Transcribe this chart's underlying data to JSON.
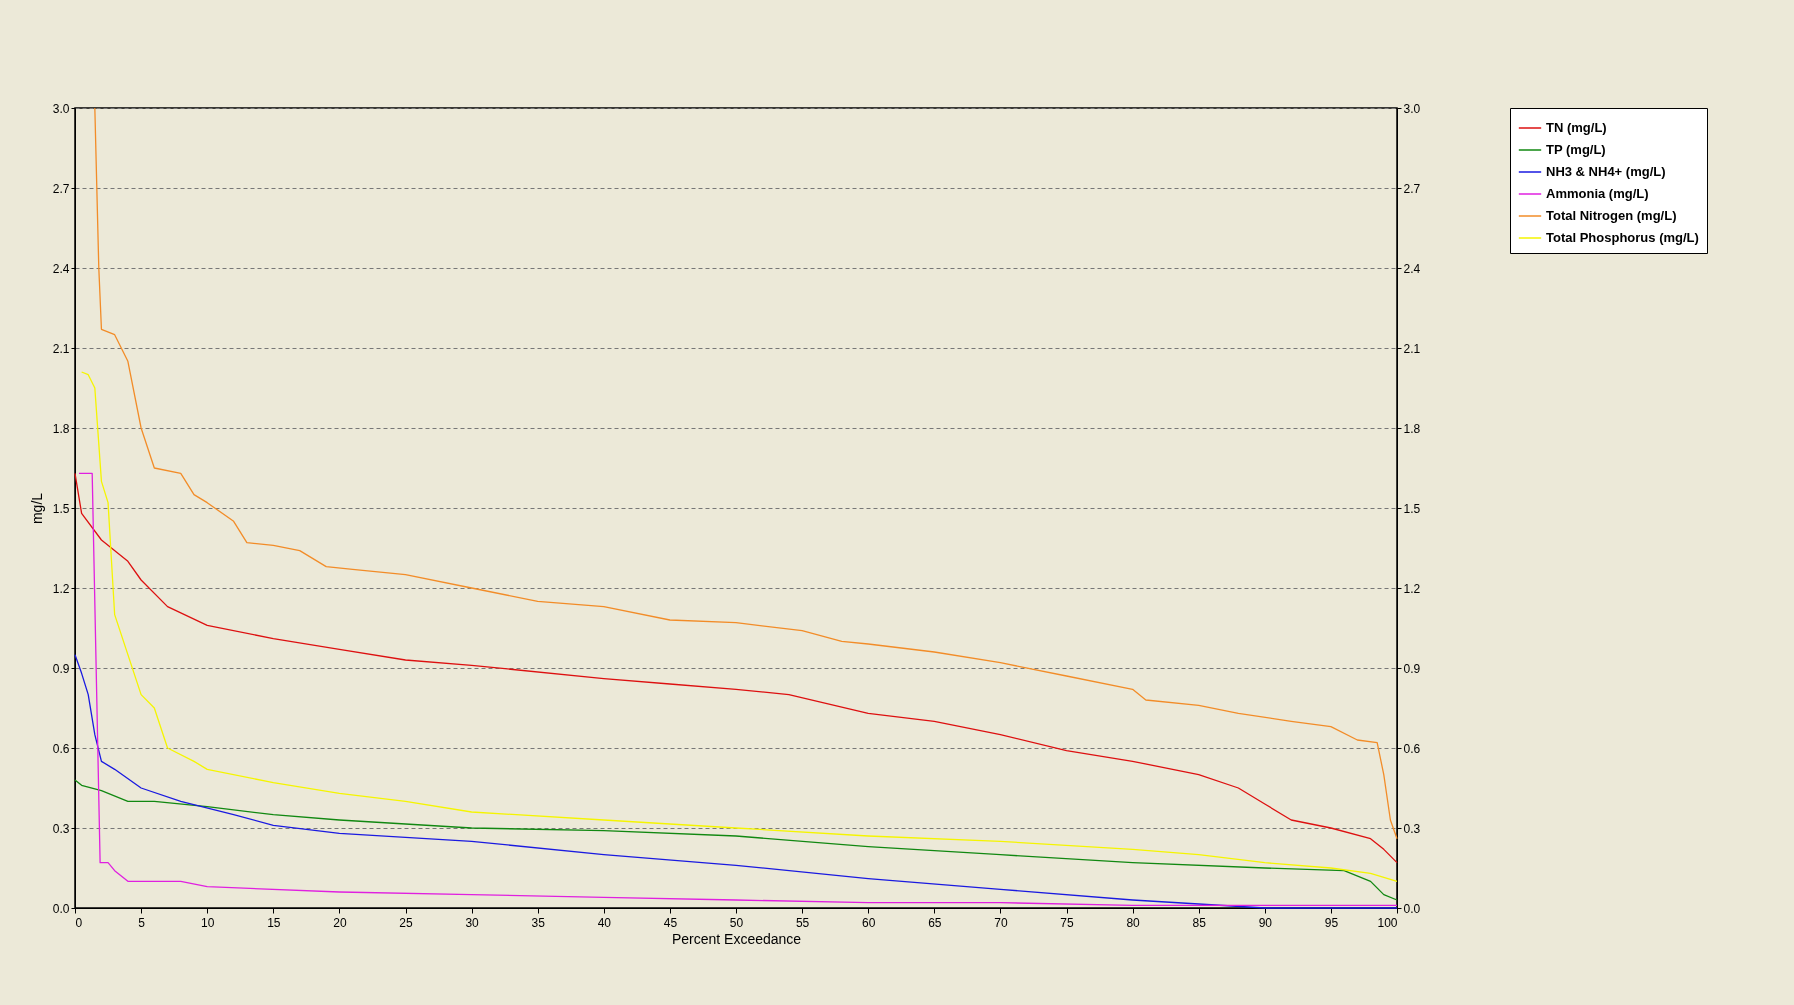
{
  "chart_data": {
    "type": "line",
    "xlabel": "Percent Exceedance",
    "ylabel": "mg/L",
    "xlim": [
      0,
      100
    ],
    "xticks": [
      0,
      5,
      10,
      15,
      20,
      25,
      30,
      35,
      40,
      45,
      50,
      55,
      60,
      65,
      70,
      75,
      80,
      85,
      90,
      95,
      100
    ],
    "ylim": [
      0,
      3
    ],
    "yticks": [
      {
        "value": 0,
        "label": "0.0"
      },
      0.3,
      0.6,
      0.9,
      1.2,
      1.5,
      1.8,
      2.1,
      2.4,
      2.7,
      {
        "value": 3,
        "label": "3.0"
      }
    ],
    "y2lim": [
      0,
      3
    ],
    "y2ticks": [
      {
        "value": 0,
        "label": "0.0"
      },
      0.3,
      0.6,
      0.9,
      1.2,
      1.5,
      1.8,
      2.1,
      2.4,
      2.7,
      {
        "value": 3,
        "label": "3.0"
      }
    ],
    "grid": "y",
    "legend": "top right",
    "line_style": "solid",
    "marker": "none",
    "series": [
      {
        "name": "TN (mg/L)",
        "color": "#dd1010",
        "x": [
          0,
          0.5,
          2,
          4,
          5,
          7,
          10,
          15,
          20,
          25,
          30,
          40,
          45,
          50,
          54,
          60,
          65,
          70,
          75,
          80,
          85,
          88,
          90,
          92,
          95,
          98,
          99,
          100
        ],
        "values": [
          1.63,
          1.48,
          1.38,
          1.3,
          1.23,
          1.13,
          1.06,
          1.01,
          0.97,
          0.93,
          0.91,
          0.86,
          0.84,
          0.82,
          0.8,
          0.73,
          0.7,
          0.65,
          0.59,
          0.55,
          0.5,
          0.45,
          0.39,
          0.33,
          0.3,
          0.26,
          0.22,
          0.17
        ]
      },
      {
        "name": "TP (mg/L)",
        "color": "#118811",
        "x": [
          0,
          0.5,
          2,
          4,
          6,
          10,
          15,
          20,
          30,
          40,
          50,
          60,
          70,
          80,
          90,
          96,
          98,
          99,
          100
        ],
        "values": [
          0.48,
          0.46,
          0.44,
          0.4,
          0.4,
          0.38,
          0.35,
          0.33,
          0.3,
          0.29,
          0.27,
          0.23,
          0.2,
          0.17,
          0.15,
          0.14,
          0.1,
          0.05,
          0.03
        ]
      },
      {
        "name": "NH3 & NH4+ (mg/L)",
        "color": "#1a1ae0",
        "x": [
          0,
          0.5,
          1,
          1.5,
          2,
          3,
          5,
          8,
          12,
          15,
          20,
          30,
          40,
          50,
          60,
          70,
          80,
          90,
          100
        ],
        "values": [
          0.95,
          0.88,
          0.8,
          0.65,
          0.55,
          0.52,
          0.45,
          0.4,
          0.35,
          0.31,
          0.28,
          0.25,
          0.2,
          0.16,
          0.11,
          0.07,
          0.03,
          0,
          0
        ]
      },
      {
        "name": "Ammonia (mg/L)",
        "color": "#e020e0",
        "x": [
          0.3,
          1.3,
          1.9,
          2.5,
          3,
          4,
          8,
          10,
          20,
          30,
          40,
          50,
          60,
          70,
          80,
          100
        ],
        "values": [
          1.63,
          1.63,
          0.17,
          0.17,
          0.14,
          0.1,
          0.1,
          0.08,
          0.06,
          0.05,
          0.04,
          0.03,
          0.02,
          0.02,
          0.01,
          0.01
        ]
      },
      {
        "name": "Total Nitrogen (mg/L)",
        "color": "#f28c28",
        "x": [
          1.5,
          1.8,
          2,
          3,
          4,
          5,
          6,
          8,
          9,
          10,
          12,
          13,
          15,
          17,
          19,
          21,
          25,
          30,
          35,
          40,
          45,
          50,
          55,
          58,
          60,
          65,
          70,
          75,
          80,
          81,
          85,
          88,
          92,
          95,
          97,
          98.5,
          99,
          99.5,
          100
        ],
        "values": [
          3.0,
          2.4,
          2.17,
          2.15,
          2.05,
          1.8,
          1.65,
          1.63,
          1.55,
          1.52,
          1.45,
          1.37,
          1.36,
          1.34,
          1.28,
          1.27,
          1.25,
          1.2,
          1.15,
          1.13,
          1.08,
          1.07,
          1.04,
          1.0,
          0.99,
          0.96,
          0.92,
          0.87,
          0.82,
          0.78,
          0.76,
          0.73,
          0.7,
          0.68,
          0.63,
          0.62,
          0.5,
          0.33,
          0.26
        ]
      },
      {
        "name": "Total Phosphorus (mg/L)",
        "color": "#f5f500",
        "x": [
          0.5,
          1,
          1.5,
          2,
          2.5,
          3,
          4,
          5,
          6,
          7,
          9,
          10,
          15,
          20,
          25,
          30,
          40,
          50,
          60,
          70,
          80,
          85,
          90,
          95,
          98,
          100
        ],
        "values": [
          2.01,
          2.0,
          1.95,
          1.6,
          1.52,
          1.1,
          0.95,
          0.8,
          0.75,
          0.6,
          0.55,
          0.52,
          0.47,
          0.43,
          0.4,
          0.36,
          0.33,
          0.3,
          0.27,
          0.25,
          0.22,
          0.2,
          0.17,
          0.15,
          0.13,
          0.1
        ]
      }
    ]
  }
}
